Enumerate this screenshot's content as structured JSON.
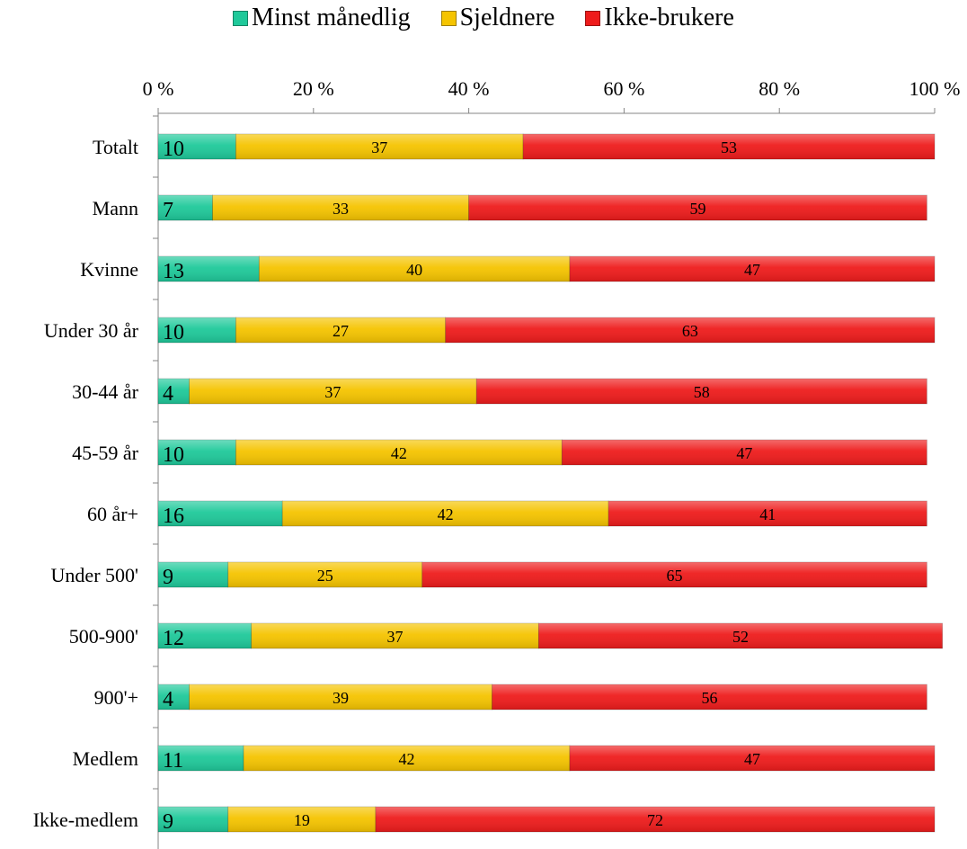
{
  "chart_data": {
    "type": "bar",
    "orientation": "horizontal",
    "stacked": true,
    "percent_stacked": true,
    "categories": [
      "Totalt",
      "Mann",
      "Kvinne",
      "Under 30 år",
      "30-44 år",
      "45-59 år",
      "60 år+",
      "Under 500'",
      "500-900'",
      "900'+",
      "Medlem",
      "Ikke-medlem"
    ],
    "series": [
      {
        "name": "Minst månedlig",
        "color": "#1fc99a",
        "values": [
          10,
          7,
          13,
          10,
          4,
          10,
          16,
          9,
          12,
          4,
          11,
          9
        ]
      },
      {
        "name": "Sjeldnere",
        "color": "#f5c400",
        "values": [
          37,
          33,
          40,
          27,
          37,
          42,
          42,
          25,
          37,
          39,
          42,
          19
        ]
      },
      {
        "name": "Ikke-brukere",
        "color": "#ee1c1c",
        "values": [
          53,
          59,
          47,
          63,
          58,
          47,
          41,
          65,
          52,
          56,
          47,
          72
        ]
      }
    ],
    "xlim": [
      0,
      100
    ],
    "x_ticks": [
      "0 %",
      "20 %",
      "40 %",
      "60 %",
      "80 %",
      "100 %"
    ],
    "x_axis_position": "top",
    "legend_position": "top",
    "grid": false
  }
}
